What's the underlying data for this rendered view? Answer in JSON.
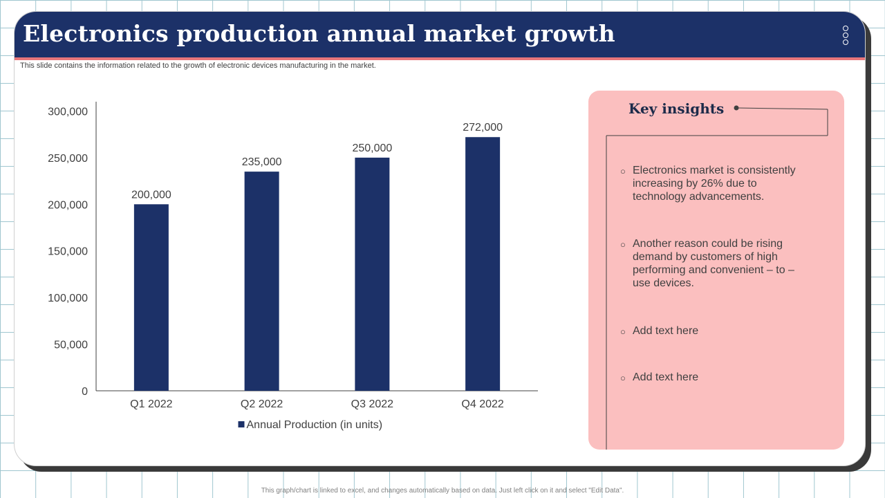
{
  "header": {
    "title": "Electronics production annual market growth",
    "subtitle": "This slide contains the information related to the growth of  electronic devices manufacturing in the market."
  },
  "colors": {
    "header_bg": "#1c3168",
    "accent_line": "#e8767a",
    "bar": "#1c3168",
    "insight_panel": "#fbbfbf"
  },
  "chart_data": {
    "type": "bar",
    "title": "",
    "categories": [
      "Q1 2022",
      "Q2 2022",
      "Q3 2022",
      "Q4 2022"
    ],
    "series": [
      {
        "name": "Annual Production (in units)",
        "values": [
          200000,
          235000,
          250000,
          272000
        ],
        "value_labels": [
          "200,000",
          "235,000",
          "250,000",
          "272,000"
        ]
      }
    ],
    "y_ticks": [
      0,
      50000,
      100000,
      150000,
      200000,
      250000,
      300000
    ],
    "y_tick_labels": [
      "0",
      "50,000",
      "100,000",
      "150,000",
      "200,000",
      "250,000",
      "300,000"
    ],
    "ylim": [
      0,
      310000
    ],
    "xlabel": "",
    "ylabel": "",
    "grid": false,
    "legend": "bottom"
  },
  "insights": {
    "title": "Key insights",
    "bullet_icon": "hollow-circle-icon",
    "items": [
      "Electronics market is consistently increasing  by 26% due to technology advancements.",
      "Another reason could be rising demand by customers of high performing and convenient – to – use devices.",
      "Add text here",
      "Add text here"
    ]
  },
  "footer": {
    "note": "This graph/chart is linked to excel, and changes automatically based on data. Just left click on it and select \"Edit Data\"."
  }
}
